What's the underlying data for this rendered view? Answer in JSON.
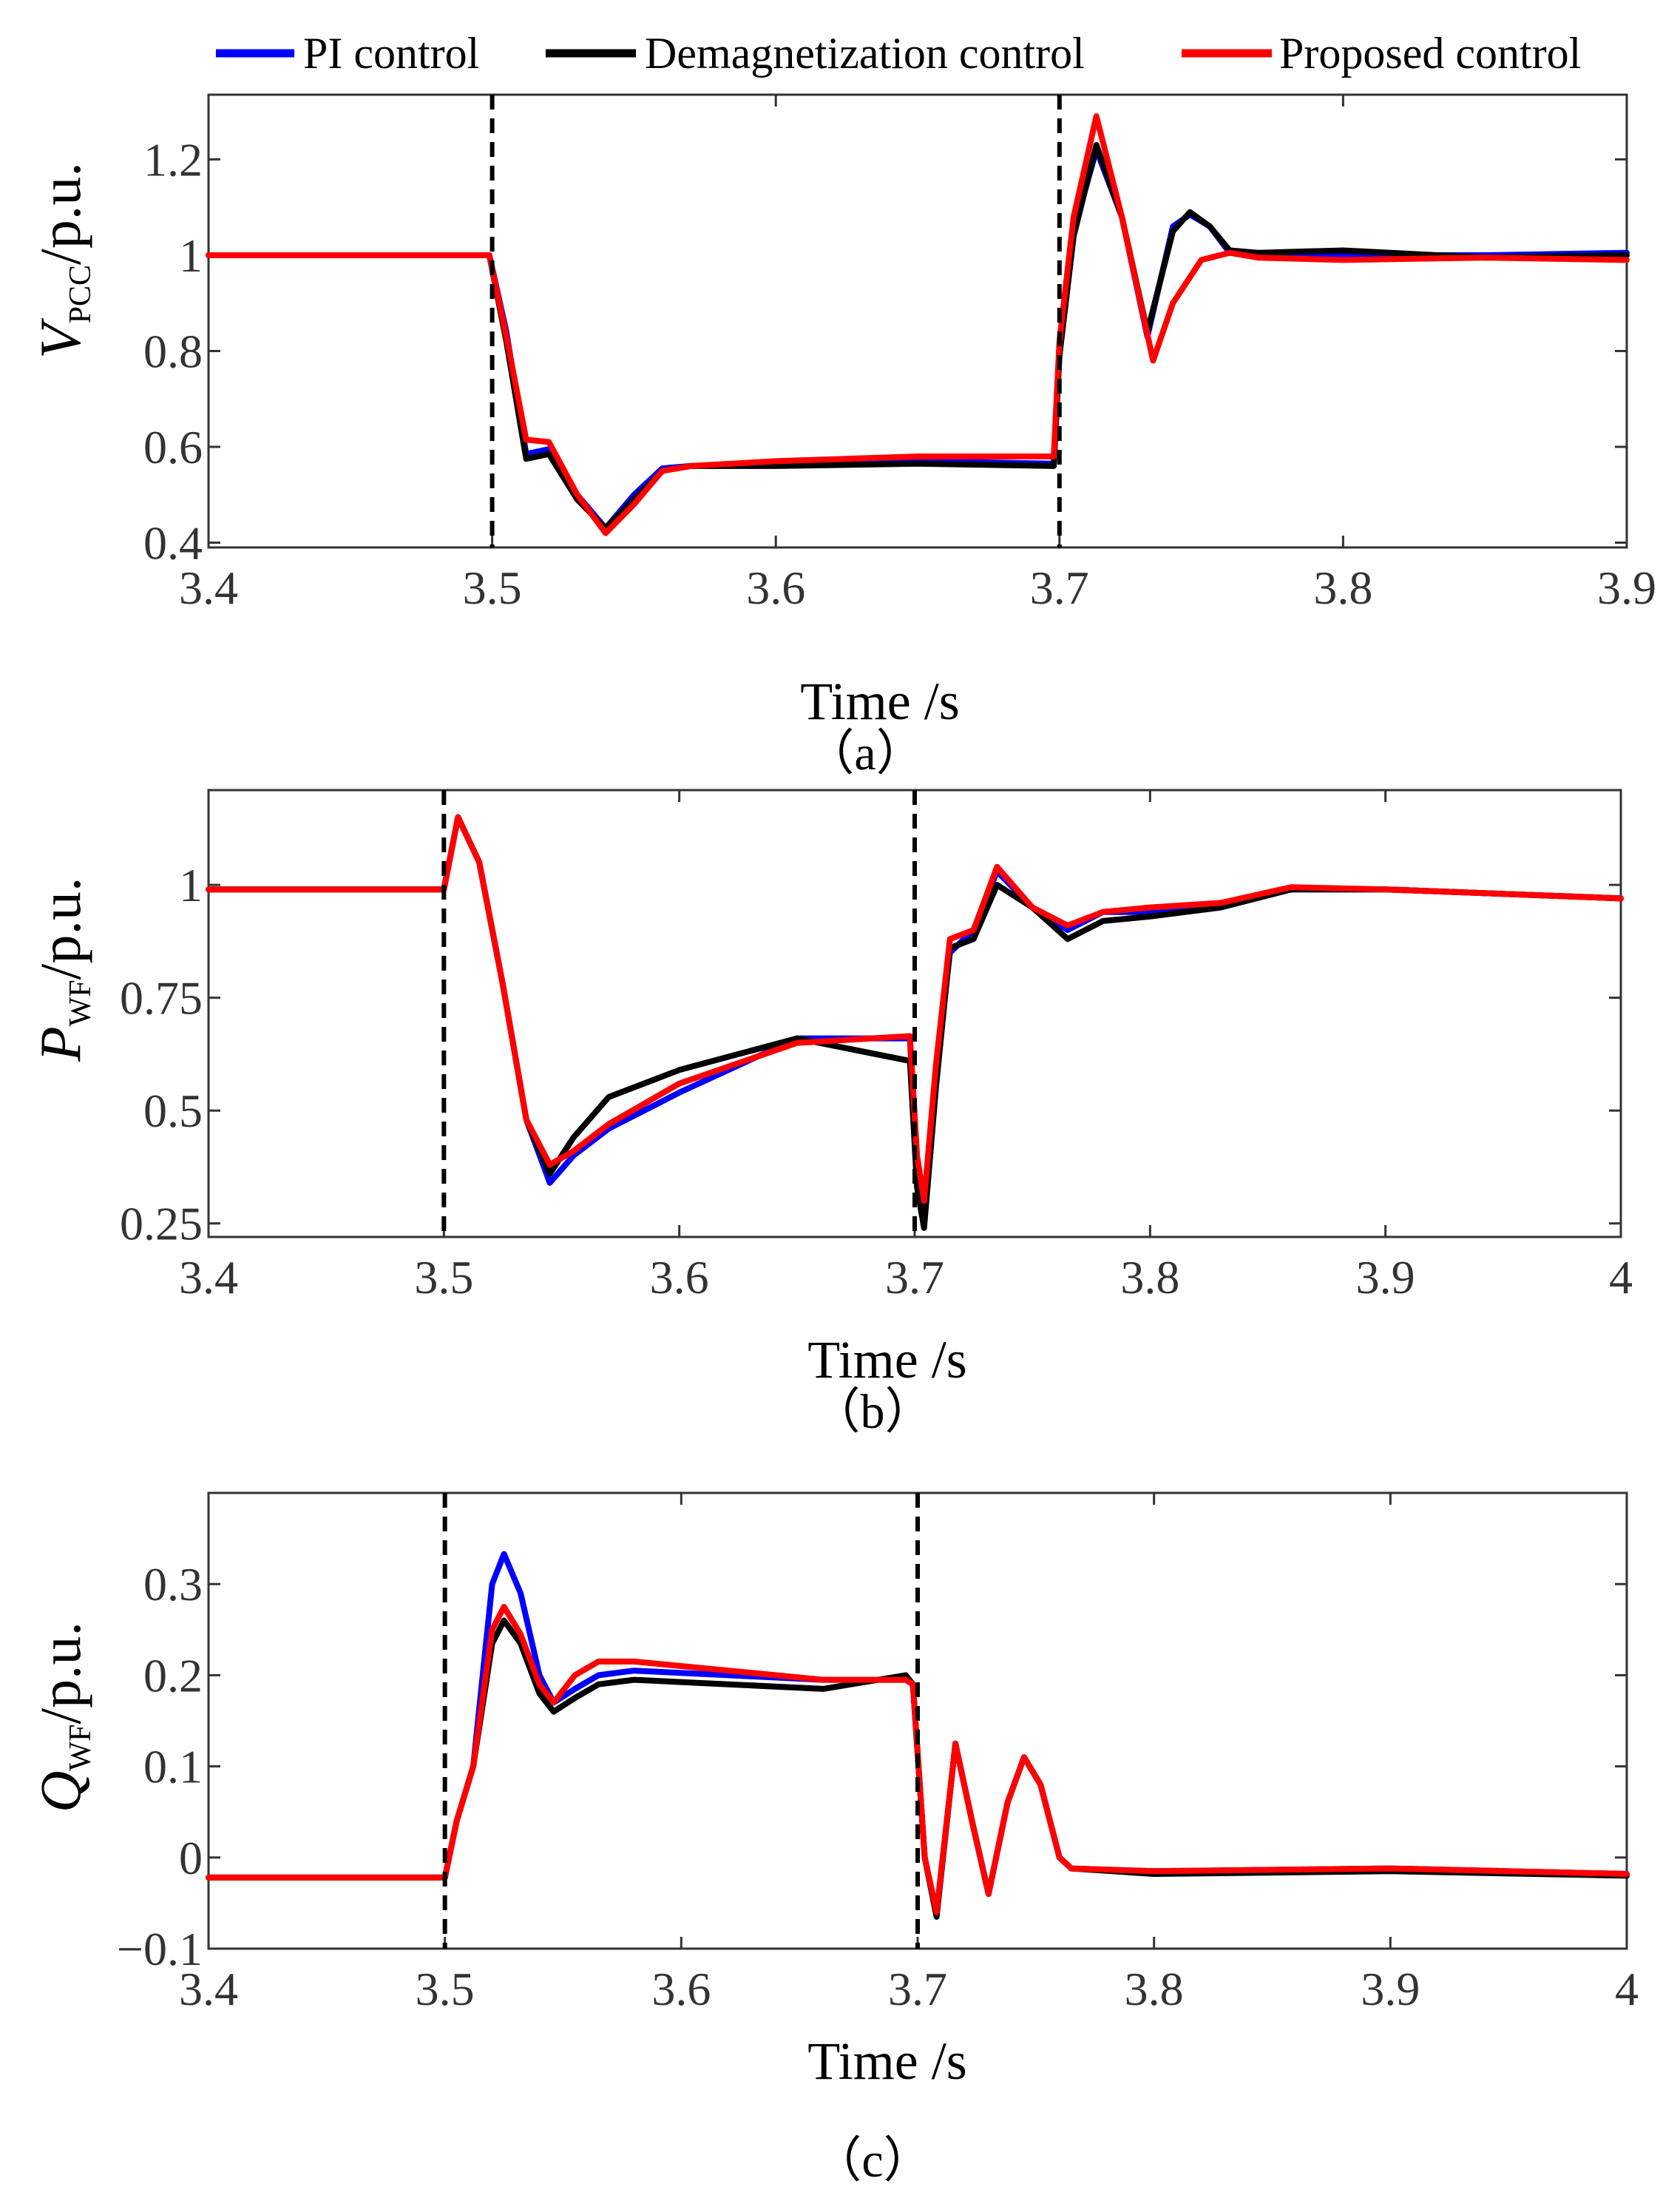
{
  "legend": {
    "items": [
      {
        "label": "PI control",
        "color": "#0000ff"
      },
      {
        "label": "Demagnetization control",
        "color": "#000000"
      },
      {
        "label": "Proposed control",
        "color": "#ff0000"
      }
    ]
  },
  "chart_data": [
    {
      "type": "line",
      "panel_label": "（a）",
      "xlabel": "Time /s",
      "ylabel_main": "V",
      "ylabel_sub": "PCC",
      "ylabel_unit": "/p.u.",
      "xlim": [
        3.4,
        3.9
      ],
      "ylim": [
        0.39,
        1.335
      ],
      "xticks": [
        3.4,
        3.5,
        3.6,
        3.7,
        3.8,
        3.9
      ],
      "xtick_labels": [
        "3.4",
        "3.5",
        "3.6",
        "3.7",
        "3.8",
        "3.9"
      ],
      "yticks": [
        0.4,
        0.6,
        0.8,
        1.0,
        1.2
      ],
      "ytick_labels": [
        "0.4",
        "0.6",
        "0.8",
        "1",
        "1.2"
      ],
      "vlines": [
        3.5,
        3.7
      ],
      "series": [
        {
          "name": "PI control",
          "color": "#0000ff",
          "x": [
            3.4,
            3.499,
            3.505,
            3.512,
            3.52,
            3.53,
            3.54,
            3.55,
            3.56,
            3.57,
            3.6,
            3.65,
            3.698,
            3.7,
            3.705,
            3.713,
            3.722,
            3.731,
            3.74,
            3.746,
            3.753,
            3.76,
            3.77,
            3.8,
            3.85,
            3.9
          ],
          "y": [
            1.0,
            1.0,
            0.84,
            0.585,
            0.595,
            0.5,
            0.43,
            0.5,
            0.555,
            0.56,
            0.565,
            0.57,
            0.565,
            0.8,
            1.05,
            1.22,
            1.08,
            0.83,
            1.06,
            1.085,
            1.06,
            1.005,
            1.0,
            1.0,
            1.0,
            1.005
          ]
        },
        {
          "name": "Demagnetization control",
          "color": "#000000",
          "x": [
            3.4,
            3.499,
            3.505,
            3.512,
            3.52,
            3.53,
            3.54,
            3.55,
            3.56,
            3.57,
            3.6,
            3.65,
            3.698,
            3.7,
            3.705,
            3.713,
            3.722,
            3.731,
            3.74,
            3.746,
            3.753,
            3.76,
            3.77,
            3.8,
            3.85,
            3.9
          ],
          "y": [
            1.0,
            1.0,
            0.82,
            0.575,
            0.585,
            0.49,
            0.43,
            0.49,
            0.55,
            0.56,
            0.56,
            0.565,
            0.56,
            0.79,
            1.04,
            1.23,
            1.08,
            0.84,
            1.05,
            1.09,
            1.06,
            1.01,
            1.005,
            1.01,
            0.995,
            1.0
          ]
        },
        {
          "name": "Proposed control",
          "color": "#ff0000",
          "x": [
            3.4,
            3.499,
            3.505,
            3.512,
            3.52,
            3.53,
            3.54,
            3.55,
            3.56,
            3.57,
            3.6,
            3.65,
            3.698,
            3.7,
            3.705,
            3.713,
            3.722,
            3.733,
            3.74,
            3.75,
            3.76,
            3.77,
            3.8,
            3.85,
            3.9
          ],
          "y": [
            1.0,
            1.0,
            0.83,
            0.615,
            0.61,
            0.5,
            0.42,
            0.48,
            0.55,
            0.56,
            0.57,
            0.58,
            0.58,
            0.82,
            1.08,
            1.29,
            1.08,
            0.78,
            0.9,
            0.99,
            1.005,
            0.995,
            0.99,
            0.995,
            0.99
          ]
        }
      ]
    },
    {
      "type": "line",
      "panel_label": "（b）",
      "xlabel": "Time /s",
      "ylabel_main": "P",
      "ylabel_sub": "WF",
      "ylabel_unit": "/p.u.",
      "xlim": [
        3.4,
        4.0
      ],
      "ylim": [
        0.22,
        1.21
      ],
      "xticks": [
        3.4,
        3.5,
        3.6,
        3.7,
        3.8,
        3.9,
        4.0
      ],
      "xtick_labels": [
        "3.4",
        "3.5",
        "3.6",
        "3.7",
        "3.8",
        "3.9",
        "4"
      ],
      "yticks": [
        0.25,
        0.5,
        0.75,
        1.0
      ],
      "ytick_labels": [
        "0.25",
        "0.5",
        "0.75",
        "1"
      ],
      "vlines": [
        3.5,
        3.7
      ],
      "series": [
        {
          "name": "PI control",
          "color": "#0000ff",
          "x": [
            3.4,
            3.5,
            3.506,
            3.515,
            3.525,
            3.535,
            3.545,
            3.555,
            3.57,
            3.6,
            3.65,
            3.698,
            3.701,
            3.704,
            3.709,
            3.715,
            3.725,
            3.735,
            3.75,
            3.765,
            3.78,
            3.8,
            3.83,
            3.86,
            3.9,
            4.0
          ],
          "y": [
            0.99,
            0.99,
            1.15,
            1.05,
            0.78,
            0.48,
            0.34,
            0.4,
            0.46,
            0.54,
            0.66,
            0.66,
            0.36,
            0.28,
            0.58,
            0.85,
            0.9,
            1.03,
            0.95,
            0.9,
            0.94,
            0.94,
            0.96,
            0.99,
            0.99,
            0.97
          ]
        },
        {
          "name": "Demagnetization control",
          "color": "#000000",
          "x": [
            3.4,
            3.5,
            3.506,
            3.515,
            3.525,
            3.535,
            3.545,
            3.555,
            3.57,
            3.6,
            3.65,
            3.698,
            3.701,
            3.704,
            3.709,
            3.715,
            3.725,
            3.735,
            3.75,
            3.765,
            3.78,
            3.8,
            3.83,
            3.86,
            3.9,
            4.0
          ],
          "y": [
            0.99,
            0.99,
            1.15,
            1.05,
            0.78,
            0.48,
            0.36,
            0.44,
            0.53,
            0.59,
            0.66,
            0.61,
            0.33,
            0.24,
            0.55,
            0.86,
            0.88,
            1.0,
            0.95,
            0.88,
            0.92,
            0.93,
            0.95,
            0.99,
            0.99,
            0.97
          ]
        },
        {
          "name": "Proposed control",
          "color": "#ff0000",
          "x": [
            3.4,
            3.5,
            3.506,
            3.515,
            3.525,
            3.535,
            3.545,
            3.555,
            3.57,
            3.6,
            3.65,
            3.698,
            3.701,
            3.704,
            3.709,
            3.715,
            3.725,
            3.735,
            3.75,
            3.765,
            3.78,
            3.8,
            3.83,
            3.86,
            3.9,
            4.0
          ],
          "y": [
            0.99,
            0.99,
            1.15,
            1.05,
            0.78,
            0.48,
            0.38,
            0.41,
            0.47,
            0.56,
            0.65,
            0.665,
            0.4,
            0.3,
            0.6,
            0.88,
            0.9,
            1.04,
            0.95,
            0.91,
            0.94,
            0.95,
            0.96,
            0.995,
            0.99,
            0.97
          ]
        }
      ]
    },
    {
      "type": "line",
      "panel_label": "（c）",
      "xlabel": "Time /s",
      "ylabel_main": "Q",
      "ylabel_sub": "WF",
      "ylabel_unit": "/p.u.",
      "xlim": [
        3.4,
        4.0
      ],
      "ylim": [
        -0.1,
        0.4
      ],
      "xticks": [
        3.4,
        3.5,
        3.6,
        3.7,
        3.8,
        3.9,
        4.0
      ],
      "xtick_labels": [
        "3.4",
        "3.5",
        "3.6",
        "3.7",
        "3.8",
        "3.9",
        "4"
      ],
      "yticks": [
        -0.1,
        0.0,
        0.1,
        0.2,
        0.3
      ],
      "ytick_labels": [
        "−0.1",
        "0",
        "0.1",
        "0.2",
        "0.3"
      ],
      "vlines": [
        3.5,
        3.7
      ],
      "series": [
        {
          "name": "PI control",
          "color": "#0000ff",
          "x": [
            3.4,
            3.5,
            3.505,
            3.512,
            3.52,
            3.525,
            3.532,
            3.54,
            3.546,
            3.555,
            3.565,
            3.58,
            3.62,
            3.66,
            3.695,
            3.698,
            3.703,
            3.708,
            3.716,
            3.723,
            3.73,
            3.738,
            3.745,
            3.752,
            3.76,
            3.765,
            3.8,
            3.9,
            4.0
          ],
          "y": [
            -0.022,
            -0.022,
            0.04,
            0.1,
            0.3,
            0.333,
            0.29,
            0.2,
            0.17,
            0.185,
            0.2,
            0.205,
            0.2,
            0.195,
            0.195,
            0.19,
            0.0,
            -0.063,
            0.125,
            0.04,
            -0.04,
            0.06,
            0.11,
            0.08,
            0.0,
            -0.012,
            -0.015,
            -0.012,
            -0.018
          ]
        },
        {
          "name": "Demagnetization control",
          "color": "#000000",
          "x": [
            3.4,
            3.5,
            3.505,
            3.512,
            3.52,
            3.525,
            3.532,
            3.54,
            3.546,
            3.555,
            3.565,
            3.58,
            3.62,
            3.66,
            3.695,
            3.698,
            3.703,
            3.708,
            3.716,
            3.723,
            3.73,
            3.738,
            3.745,
            3.752,
            3.76,
            3.765,
            3.8,
            3.9,
            4.0
          ],
          "y": [
            -0.022,
            -0.022,
            0.04,
            0.1,
            0.235,
            0.26,
            0.235,
            0.18,
            0.16,
            0.175,
            0.19,
            0.195,
            0.19,
            0.185,
            0.2,
            0.19,
            0.0,
            -0.065,
            0.125,
            0.04,
            -0.04,
            0.06,
            0.11,
            0.08,
            0.0,
            -0.012,
            -0.018,
            -0.015,
            -0.02
          ]
        },
        {
          "name": "Proposed control",
          "color": "#ff0000",
          "x": [
            3.4,
            3.5,
            3.505,
            3.512,
            3.52,
            3.525,
            3.532,
            3.54,
            3.546,
            3.555,
            3.565,
            3.58,
            3.62,
            3.66,
            3.695,
            3.698,
            3.703,
            3.708,
            3.716,
            3.723,
            3.73,
            3.738,
            3.745,
            3.752,
            3.76,
            3.765,
            3.8,
            3.9,
            4.0
          ],
          "y": [
            -0.022,
            -0.022,
            0.04,
            0.1,
            0.25,
            0.275,
            0.245,
            0.19,
            0.17,
            0.2,
            0.215,
            0.215,
            0.205,
            0.195,
            0.195,
            0.19,
            0.0,
            -0.06,
            0.125,
            0.04,
            -0.04,
            0.06,
            0.11,
            0.08,
            0.0,
            -0.012,
            -0.015,
            -0.012,
            -0.018
          ]
        }
      ]
    }
  ]
}
